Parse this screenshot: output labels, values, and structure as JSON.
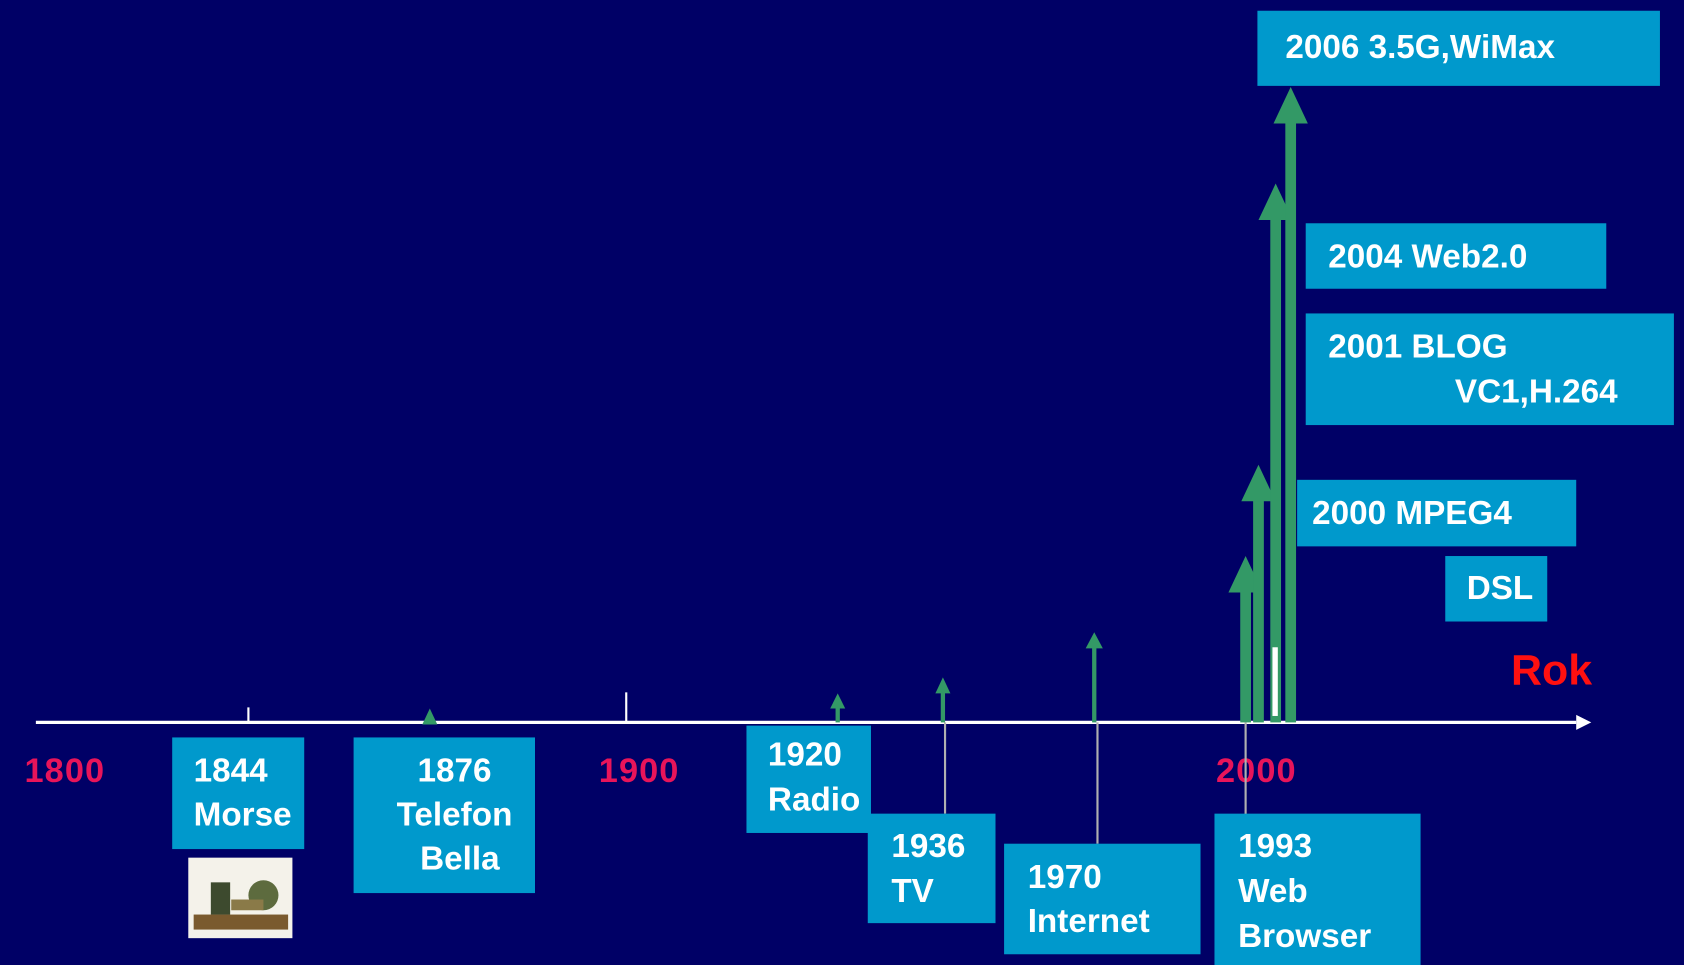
{
  "axis": {
    "year_labels": [
      "1800",
      "1900",
      "2000"
    ],
    "unit": "Rok"
  },
  "events": [
    {
      "lines": [
        "1844",
        "Morse"
      ]
    },
    {
      "lines": [
        "1876",
        "Telefon",
        "Bella"
      ]
    },
    {
      "lines": [
        "1920",
        "Radio"
      ]
    },
    {
      "lines": [
        "1936",
        "TV"
      ]
    },
    {
      "lines": [
        "1970",
        "Internet"
      ]
    },
    {
      "lines": [
        "1993",
        "Web",
        "Browser"
      ]
    },
    {
      "lines": [
        "2000 MPEG4"
      ]
    },
    {
      "lines": [
        "DSL"
      ]
    },
    {
      "lines": [
        "2001 BLOG",
        "VC1,H.264"
      ]
    },
    {
      "lines": [
        "2004 Web2.0"
      ]
    },
    {
      "lines": [
        "2006 3.5G,WiMax"
      ]
    }
  ]
}
